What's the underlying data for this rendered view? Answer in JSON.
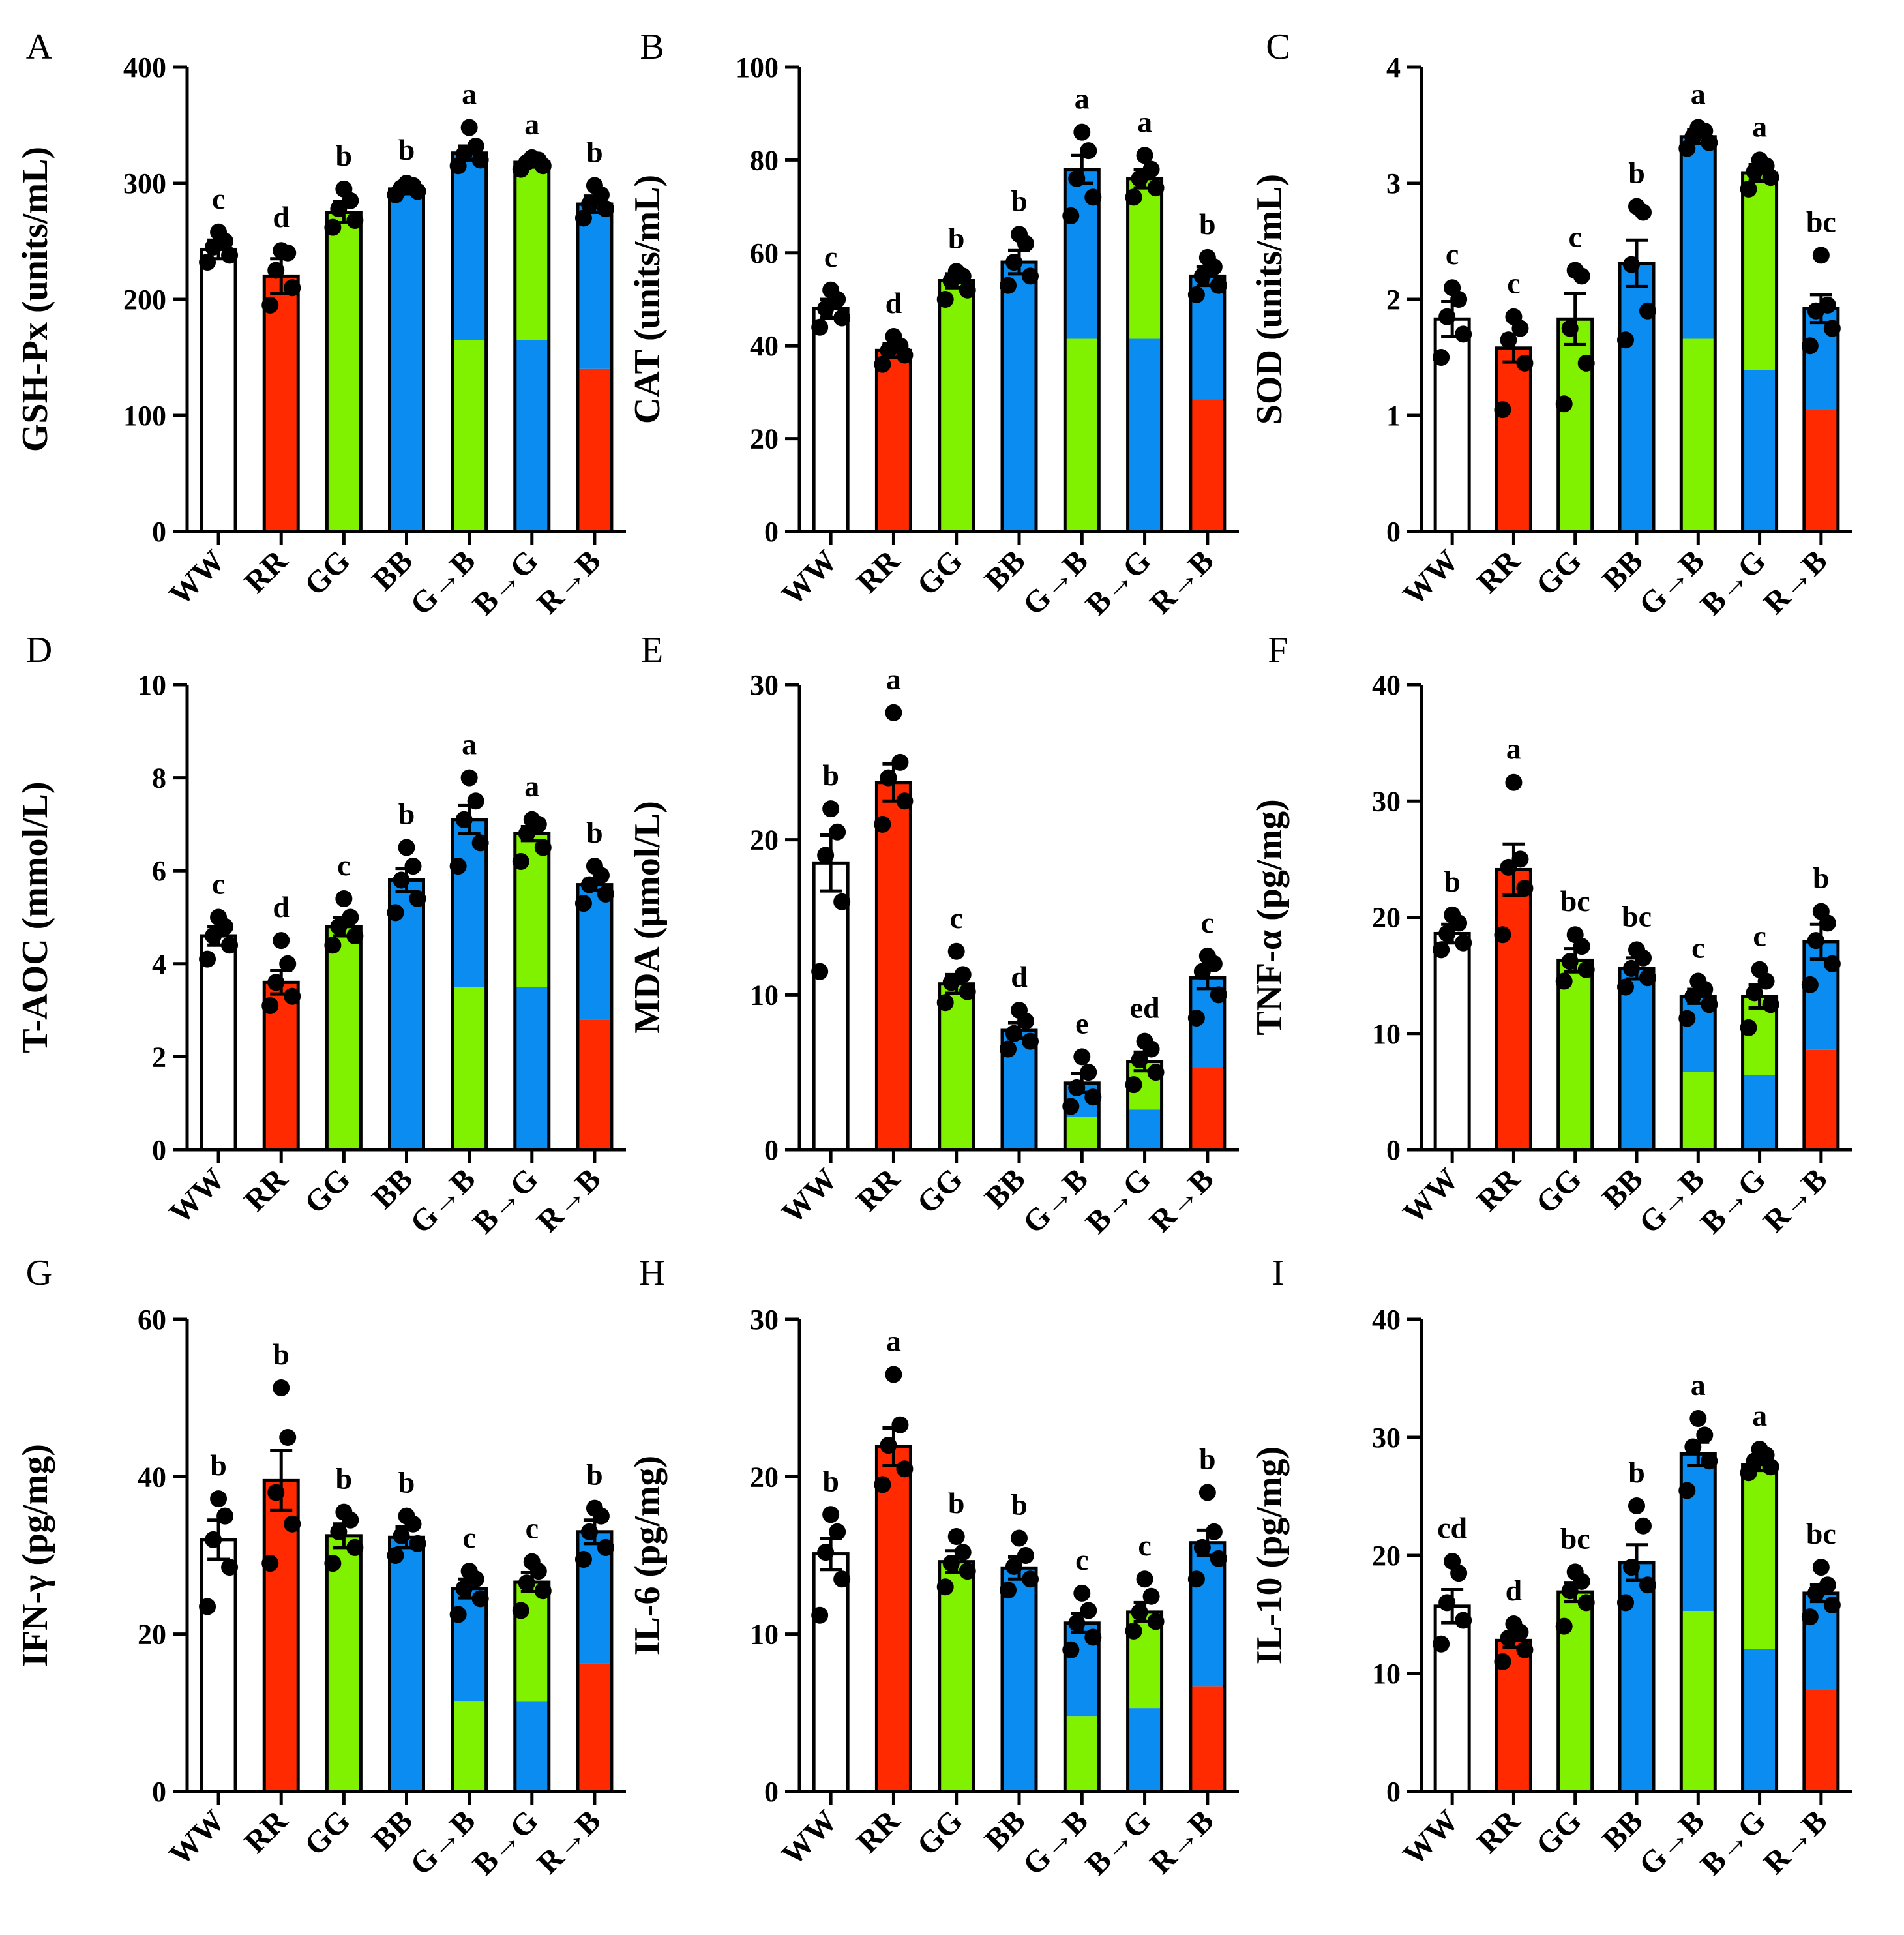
{
  "colors": {
    "white": "#ffffff",
    "red": "#ff2a00",
    "green": "#80f200",
    "blue": "#0a8cf0",
    "black": "#000000"
  },
  "chart_data": [
    {
      "panel": "A",
      "type": "bar",
      "ylabel": "GSH-Px (units/mL)",
      "ylim": [
        0,
        400
      ],
      "yticks": [
        "0",
        "100",
        "200",
        "300",
        "400"
      ],
      "categories": [
        "WW",
        "RR",
        "GG",
        "BB",
        "G→B",
        "B→G",
        "R→B"
      ],
      "values": [
        243,
        220,
        275,
        295,
        326,
        318,
        282
      ],
      "errors": [
        8,
        15,
        9,
        4,
        6,
        4,
        7
      ],
      "fill": [
        [
          "white"
        ],
        [
          "red"
        ],
        [
          "green"
        ],
        [
          "blue"
        ],
        [
          "green",
          "blue"
        ],
        [
          "blue",
          "green"
        ],
        [
          "red",
          "blue"
        ]
      ],
      "split": [
        null,
        null,
        null,
        null,
        165,
        165,
        140
      ],
      "sig": [
        "c",
        "d",
        "b",
        "b",
        "a",
        "a",
        "b"
      ],
      "points": [
        [
          232,
          238,
          245,
          250,
          258
        ],
        [
          195,
          210,
          225,
          240,
          242
        ],
        [
          262,
          268,
          278,
          285,
          295
        ],
        [
          290,
          293,
          296,
          298,
          300
        ],
        [
          315,
          320,
          325,
          332,
          348
        ],
        [
          312,
          315,
          318,
          320,
          322
        ],
        [
          270,
          278,
          282,
          290,
          298
        ]
      ]
    },
    {
      "panel": "B",
      "type": "bar",
      "ylabel": "CAT (units/mL)",
      "ylim": [
        0,
        100
      ],
      "yticks": [
        "0",
        "20",
        "40",
        "60",
        "80",
        "100"
      ],
      "categories": [
        "WW",
        "RR",
        "GG",
        "BB",
        "G→B",
        "B→G",
        "R→B"
      ],
      "values": [
        48,
        39,
        54,
        58,
        78,
        76,
        55
      ],
      "errors": [
        2,
        1.5,
        1.5,
        2.5,
        3,
        2,
        2
      ],
      "fill": [
        [
          "white"
        ],
        [
          "red"
        ],
        [
          "green"
        ],
        [
          "blue"
        ],
        [
          "green",
          "blue"
        ],
        [
          "blue",
          "green"
        ],
        [
          "red",
          "blue"
        ]
      ],
      "split": [
        null,
        null,
        null,
        null,
        41.5,
        41.5,
        28.5
      ],
      "sig": [
        "c",
        "d",
        "b",
        "b",
        "a",
        "a",
        "b"
      ],
      "points": [
        [
          44,
          46,
          48,
          50,
          52
        ],
        [
          36,
          38,
          39,
          40,
          42
        ],
        [
          50,
          52,
          54,
          55,
          56
        ],
        [
          53,
          55,
          58,
          62,
          64
        ],
        [
          68,
          72,
          76,
          82,
          86
        ],
        [
          72,
          74,
          76,
          78,
          81
        ],
        [
          51,
          53,
          55,
          57,
          59
        ]
      ]
    },
    {
      "panel": "C",
      "type": "bar",
      "ylabel": "SOD (units/mL)",
      "ylim": [
        0,
        4
      ],
      "yticks": [
        "0",
        "1",
        "2",
        "3",
        "4"
      ],
      "categories": [
        "WW",
        "RR",
        "GG",
        "BB",
        "G→B",
        "B→G",
        "R→B"
      ],
      "values": [
        1.83,
        1.58,
        1.83,
        2.31,
        3.4,
        3.09,
        1.92
      ],
      "errors": [
        0.15,
        0.12,
        0.22,
        0.2,
        0.06,
        0.07,
        0.12
      ],
      "fill": [
        [
          "white"
        ],
        [
          "red"
        ],
        [
          "green"
        ],
        [
          "blue"
        ],
        [
          "green",
          "blue"
        ],
        [
          "blue",
          "green"
        ],
        [
          "red",
          "blue"
        ]
      ],
      "split": [
        null,
        null,
        null,
        null,
        1.66,
        1.39,
        1.05
      ],
      "sig": [
        "c",
        "c",
        "c",
        "b",
        "a",
        "a",
        "bc"
      ],
      "points": [
        [
          1.5,
          1.7,
          1.85,
          2.0,
          2.1
        ],
        [
          1.05,
          1.45,
          1.65,
          1.75,
          1.85
        ],
        [
          1.1,
          1.45,
          1.75,
          2.2,
          2.25
        ],
        [
          1.65,
          1.9,
          2.3,
          2.75,
          2.8
        ],
        [
          3.3,
          3.35,
          3.4,
          3.45,
          3.48
        ],
        [
          2.95,
          3.05,
          3.1,
          3.15,
          3.2
        ],
        [
          1.6,
          1.75,
          1.9,
          1.95,
          2.38
        ]
      ]
    },
    {
      "panel": "D",
      "type": "bar",
      "ylabel": "T-AOC (mmol/L)",
      "ylim": [
        0,
        10
      ],
      "yticks": [
        "0",
        "2",
        "4",
        "6",
        "8",
        "10"
      ],
      "categories": [
        "WW",
        "RR",
        "GG",
        "BB",
        "G→B",
        "B→G",
        "R→B"
      ],
      "values": [
        4.6,
        3.6,
        4.8,
        5.8,
        7.1,
        6.8,
        5.7
      ],
      "errors": [
        0.2,
        0.25,
        0.2,
        0.25,
        0.3,
        0.15,
        0.12
      ],
      "fill": [
        [
          "white"
        ],
        [
          "red"
        ],
        [
          "green"
        ],
        [
          "blue"
        ],
        [
          "green",
          "blue"
        ],
        [
          "blue",
          "green"
        ],
        [
          "red",
          "blue"
        ]
      ],
      "split": [
        null,
        null,
        null,
        null,
        3.5,
        3.5,
        2.8
      ],
      "sig": [
        "c",
        "d",
        "c",
        "b",
        "a",
        "a",
        "b"
      ],
      "points": [
        [
          4.1,
          4.4,
          4.6,
          4.8,
          5.0
        ],
        [
          3.1,
          3.3,
          3.6,
          4.0,
          4.5
        ],
        [
          4.4,
          4.6,
          4.8,
          5.0,
          5.4
        ],
        [
          5.1,
          5.4,
          5.8,
          6.1,
          6.5
        ],
        [
          6.1,
          6.6,
          7.1,
          7.5,
          8.0
        ],
        [
          6.2,
          6.5,
          6.8,
          7.0,
          7.1
        ],
        [
          5.3,
          5.5,
          5.7,
          5.9,
          6.1
        ]
      ]
    },
    {
      "panel": "E",
      "type": "bar",
      "ylabel": "MDA (μmol/L)",
      "ylim": [
        0,
        30
      ],
      "yticks": [
        "0",
        "10",
        "20",
        "30"
      ],
      "categories": [
        "WW",
        "RR",
        "GG",
        "BB",
        "G→B",
        "B→G",
        "R→B"
      ],
      "values": [
        18.5,
        23.7,
        10.7,
        7.7,
        4.3,
        5.7,
        11.1
      ],
      "errors": [
        1.8,
        1.2,
        0.6,
        0.5,
        0.6,
        0.6,
        0.7
      ],
      "fill": [
        [
          "white"
        ],
        [
          "red"
        ],
        [
          "green"
        ],
        [
          "blue"
        ],
        [
          "green",
          "blue"
        ],
        [
          "blue",
          "green"
        ],
        [
          "red",
          "blue"
        ]
      ],
      "split": [
        null,
        null,
        null,
        null,
        2.1,
        2.6,
        5.3
      ],
      "sig": [
        "b",
        "a",
        "c",
        "d",
        "e",
        "ed",
        "c"
      ],
      "points": [
        [
          11.5,
          16,
          19,
          20.5,
          22
        ],
        [
          21,
          22.5,
          24,
          25,
          28.2
        ],
        [
          9.5,
          10.2,
          10.8,
          11.3,
          12.8
        ],
        [
          6.5,
          7.0,
          7.5,
          8.3,
          9.0
        ],
        [
          2.8,
          3.4,
          4.0,
          5.0,
          6.0
        ],
        [
          4.2,
          5.0,
          5.8,
          6.5,
          7.0
        ],
        [
          8.5,
          10,
          11.5,
          12,
          12.5
        ]
      ]
    },
    {
      "panel": "F",
      "type": "bar",
      "ylabel": "TNF-α (pg/mg)",
      "ylim": [
        0,
        40
      ],
      "yticks": [
        "0",
        "10",
        "20",
        "30",
        "40"
      ],
      "categories": [
        "WW",
        "RR",
        "GG",
        "BB",
        "G→B",
        "B→G",
        "R→B"
      ],
      "values": [
        18.6,
        24.1,
        16.3,
        15.6,
        13.2,
        13.2,
        17.9
      ],
      "errors": [
        0.8,
        2.2,
        1.0,
        0.9,
        0.6,
        1.0,
        1.5
      ],
      "fill": [
        [
          "white"
        ],
        [
          "red"
        ],
        [
          "green"
        ],
        [
          "blue"
        ],
        [
          "green",
          "blue"
        ],
        [
          "blue",
          "green"
        ],
        [
          "red",
          "blue"
        ]
      ],
      "split": [
        null,
        null,
        null,
        null,
        6.7,
        6.4,
        8.6
      ],
      "sig": [
        "b",
        "a",
        "bc",
        "bc",
        "c",
        "c",
        "b"
      ],
      "points": [
        [
          17.2,
          17.8,
          18.6,
          19.5,
          20.2
        ],
        [
          18.5,
          22.5,
          24.3,
          25,
          31.6
        ],
        [
          14.5,
          15.5,
          16.2,
          17.5,
          18.5
        ],
        [
          14,
          14.8,
          15.6,
          16.5,
          17.2
        ],
        [
          11.3,
          12.5,
          13.2,
          13.8,
          14.5
        ],
        [
          10.5,
          12.5,
          13.5,
          14.5,
          15.5
        ],
        [
          14.2,
          16,
          18,
          19.5,
          20.5
        ]
      ]
    },
    {
      "panel": "G",
      "type": "bar",
      "ylabel": "IFN-γ (pg/mg)",
      "ylim": [
        0,
        60
      ],
      "yticks": [
        "0",
        "20",
        "40",
        "60"
      ],
      "categories": [
        "WW",
        "RR",
        "GG",
        "BB",
        "G→B",
        "B→G",
        "R→B"
      ],
      "values": [
        32,
        39.5,
        32.5,
        32.3,
        25.8,
        26.6,
        33
      ],
      "errors": [
        2.5,
        3.8,
        1.5,
        1.3,
        1.2,
        1.2,
        1.5
      ],
      "fill": [
        [
          "white"
        ],
        [
          "red"
        ],
        [
          "green"
        ],
        [
          "blue"
        ],
        [
          "green",
          "blue"
        ],
        [
          "blue",
          "green"
        ],
        [
          "red",
          "blue"
        ]
      ],
      "split": [
        null,
        null,
        null,
        null,
        11.5,
        11.5,
        16.3
      ],
      "sig": [
        "b",
        "b",
        "b",
        "b",
        "c",
        "c",
        "b"
      ],
      "points": [
        [
          23.5,
          28.5,
          32,
          35,
          37.2
        ],
        [
          29,
          34,
          38,
          45,
          51.3
        ],
        [
          29,
          31,
          33,
          34.5,
          35.5
        ],
        [
          30,
          31.5,
          32.5,
          34,
          35
        ],
        [
          22.5,
          24.5,
          25.8,
          27,
          28
        ],
        [
          23,
          25.5,
          26.5,
          28,
          29.2
        ],
        [
          29.5,
          31,
          33,
          35,
          36
        ]
      ]
    },
    {
      "panel": "H",
      "type": "bar",
      "ylabel": "IL-6 (pg/mg)",
      "ylim": [
        0,
        30
      ],
      "yticks": [
        "0",
        "10",
        "20",
        "30"
      ],
      "categories": [
        "WW",
        "RR",
        "GG",
        "BB",
        "G→B",
        "B→G",
        "R→B"
      ],
      "values": [
        15.1,
        21.9,
        14.6,
        14.2,
        10.7,
        11.4,
        15.8
      ],
      "errors": [
        1.0,
        1.2,
        0.7,
        0.7,
        0.6,
        0.6,
        0.8
      ],
      "fill": [
        [
          "white"
        ],
        [
          "red"
        ],
        [
          "green"
        ],
        [
          "blue"
        ],
        [
          "green",
          "blue"
        ],
        [
          "blue",
          "green"
        ],
        [
          "red",
          "blue"
        ]
      ],
      "split": [
        null,
        null,
        null,
        null,
        4.8,
        5.3,
        6.7
      ],
      "sig": [
        "b",
        "a",
        "b",
        "b",
        "c",
        "c",
        "b"
      ],
      "points": [
        [
          11.2,
          13.5,
          15.2,
          16.5,
          17.6
        ],
        [
          19.5,
          20.5,
          22,
          23.3,
          26.5
        ],
        [
          13,
          14,
          14.5,
          15.2,
          16.2
        ],
        [
          12.8,
          13.5,
          14.3,
          15,
          16.1
        ],
        [
          9,
          9.8,
          10.7,
          11.5,
          12.6
        ],
        [
          10.2,
          10.8,
          11.4,
          12.4,
          13.5
        ],
        [
          13.5,
          14.8,
          15.5,
          16.5,
          19
        ]
      ]
    },
    {
      "panel": "I",
      "type": "bar",
      "ylabel": "IL-10 (pg/mg)",
      "ylim": [
        0,
        40
      ],
      "yticks": [
        "0",
        "10",
        "20",
        "30",
        "40"
      ],
      "categories": [
        "WW",
        "RR",
        "GG",
        "BB",
        "G→B",
        "B→G",
        "R→B"
      ],
      "values": [
        15.7,
        12.8,
        16.9,
        19.4,
        28.6,
        27.7,
        16.8
      ],
      "errors": [
        1.4,
        0.6,
        0.8,
        1.5,
        1.0,
        0.5,
        0.7
      ],
      "fill": [
        [
          "white"
        ],
        [
          "red"
        ],
        [
          "green"
        ],
        [
          "blue"
        ],
        [
          "green",
          "blue"
        ],
        [
          "blue",
          "green"
        ],
        [
          "red",
          "blue"
        ]
      ],
      "split": [
        null,
        null,
        null,
        null,
        15.3,
        12.1,
        8.6
      ],
      "sig": [
        "cd",
        "d",
        "bc",
        "b",
        "a",
        "a",
        "bc"
      ],
      "points": [
        [
          12.5,
          14.5,
          16,
          18.5,
          19.5
        ],
        [
          11,
          12,
          13,
          13.5,
          14.2
        ],
        [
          14,
          16,
          17,
          17.8,
          18.6
        ],
        [
          16,
          17.5,
          19,
          22.5,
          24.2
        ],
        [
          25.5,
          28,
          29.2,
          30.2,
          31.6
        ],
        [
          27,
          27.5,
          28,
          28.5,
          29
        ],
        [
          14.8,
          15.8,
          16.8,
          17.5,
          19
        ]
      ]
    }
  ]
}
